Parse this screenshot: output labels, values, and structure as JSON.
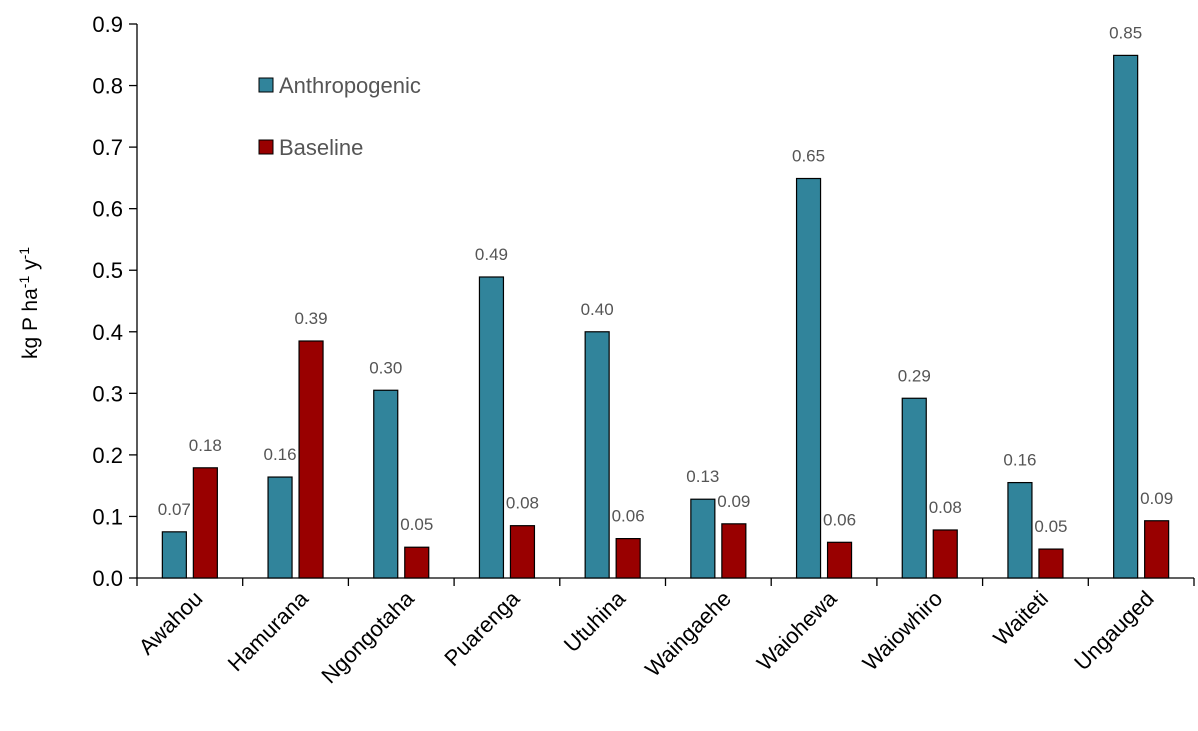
{
  "chart_data": {
    "type": "bar",
    "categories": [
      "Awahou",
      "Hamurana",
      "Ngongotaha",
      "Puarenga",
      "Utuhina",
      "Waingaehe",
      "Waiohewa",
      "Waiowhiro",
      "Waiteti",
      "Ungauged"
    ],
    "series": [
      {
        "name": "Anthropogenic",
        "color": "#31849B",
        "values": [
          0.075,
          0.164,
          0.305,
          0.489,
          0.4,
          0.128,
          0.649,
          0.292,
          0.155,
          0.849
        ],
        "labels": [
          "0.07",
          "0.16",
          "0.30",
          "0.49",
          "0.40",
          "0.13",
          "0.65",
          "0.29",
          "0.16",
          "0.85"
        ]
      },
      {
        "name": "Baseline",
        "color": "#990000",
        "values": [
          0.179,
          0.385,
          0.05,
          0.085,
          0.064,
          0.088,
          0.058,
          0.078,
          0.047,
          0.093
        ],
        "labels": [
          "0.18",
          "0.39",
          "0.05",
          "0.08",
          "0.06",
          "0.09",
          "0.06",
          "0.08",
          "0.05",
          "0.09"
        ]
      }
    ],
    "ylim": [
      0,
      0.9
    ],
    "yticks": [
      "0.0",
      "0.1",
      "0.2",
      "0.3",
      "0.4",
      "0.5",
      "0.6",
      "0.7",
      "0.8",
      "0.9"
    ],
    "ylabel": {
      "main": "kg P ha",
      "sup1": "-1",
      "mid": " y",
      "sup2": "-1"
    },
    "xlabel": "",
    "grid": false,
    "legend_position": "top-left"
  }
}
